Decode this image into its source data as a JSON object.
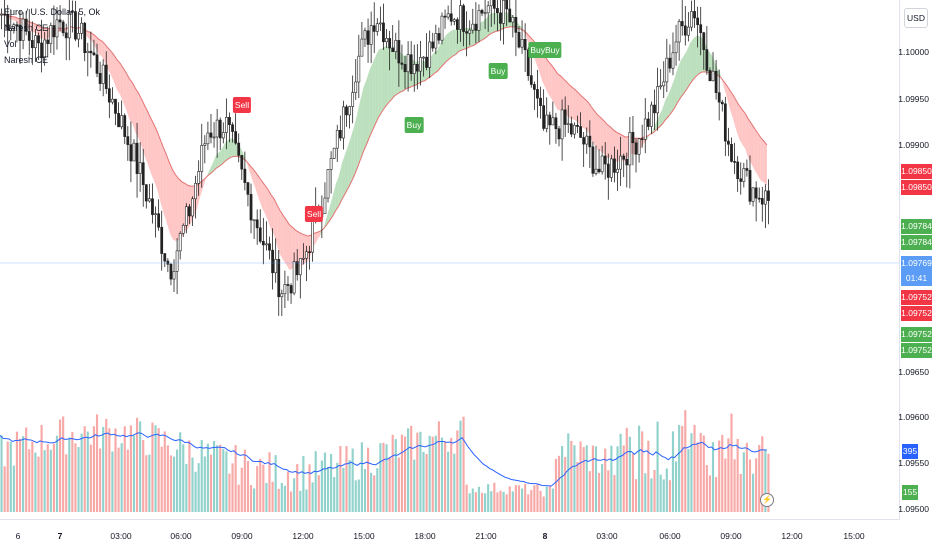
{
  "legend": {
    "symbol": "Euro / U.S. Dollar, 5, Ok",
    "indicator1": "Naresh CE",
    "indicator2": "Vol",
    "indicator3": "Naresh CE"
  },
  "currency": "USD",
  "colors": {
    "bull": "#26a69a",
    "bear": "#ef5350",
    "cloud_bull": "#a5d6a7",
    "cloud_bear": "#ffb3b3",
    "vol_ma": "#2962ff",
    "buy_tag": "#4caf50",
    "sell_tag": "#f23645",
    "last_price": "#5b9cf6"
  },
  "price_axis": {
    "ticks": [
      "1.10000",
      "1.09950",
      "1.09900",
      "1.09650",
      "1.09600",
      "1.09550",
      "1.09500"
    ]
  },
  "price_tags": [
    {
      "text": "1.09850",
      "color": "#f23645"
    },
    {
      "text": "1.09850",
      "color": "#f23645"
    },
    {
      "text": "1.09784",
      "color": "#4caf50"
    },
    {
      "text": "1.09784",
      "color": "#4caf50"
    },
    {
      "text": "1.09769",
      "color": "#5b9cf6"
    },
    {
      "text": "01:41",
      "color": "#5b9cf6"
    },
    {
      "text": "1.09752",
      "color": "#f23645"
    },
    {
      "text": "1.09752",
      "color": "#f23645"
    },
    {
      "text": "1.09752",
      "color": "#4caf50"
    },
    {
      "text": "1.09752",
      "color": "#4caf50"
    },
    {
      "text": "395",
      "color": "#2962ff"
    },
    {
      "text": "155",
      "color": "#4caf50"
    }
  ],
  "time_axis": {
    "labels": [
      "6",
      "7",
      "03:00",
      "06:00",
      "09:00",
      "12:00",
      "15:00",
      "18:00",
      "21:00",
      "8",
      "03:00",
      "06:00",
      "09:00",
      "12:00",
      "15:00"
    ]
  },
  "signals": [
    {
      "text": "Sell",
      "type": "sell"
    },
    {
      "text": "Sell",
      "type": "sell"
    },
    {
      "text": "Buy",
      "type": "buy"
    },
    {
      "text": "Buy",
      "type": "buy"
    },
    {
      "text": "BuyBuy",
      "type": "buy"
    }
  ],
  "chart_data": {
    "type": "candlestick",
    "symbol": "Euro / U.S. Dollar",
    "timeframe": "5",
    "price_range": [
      1.095,
      1.1005
    ],
    "series": [
      {
        "name": "Naresh CE",
        "kind": "cloud"
      },
      {
        "name": "Vol",
        "kind": "volume"
      }
    ],
    "price_path": [
      1.1003,
      1.1001,
      1.0998,
      1.1002,
      1.1001,
      1.0996,
      1.099,
      1.0983,
      1.0975,
      1.0966,
      1.0974,
      1.0986,
      1.0987,
      1.0978,
      1.097,
      1.0963,
      1.0966,
      1.0975,
      1.0985,
      1.0996,
      1.1003,
      1.0998,
      1.0996,
      1.0998,
      1.1003,
      1.1002,
      1.1004,
      1.1003,
      1.0996,
      1.0986,
      1.0987,
      1.0985,
      1.098,
      1.0982,
      1.0985,
      1.099,
      1.0999,
      1.1004,
      1.0994,
      1.0983,
      1.0978,
      1.0976
    ],
    "last_price": 1.09769,
    "volume_last": 155,
    "volume_ma_last": 395
  }
}
